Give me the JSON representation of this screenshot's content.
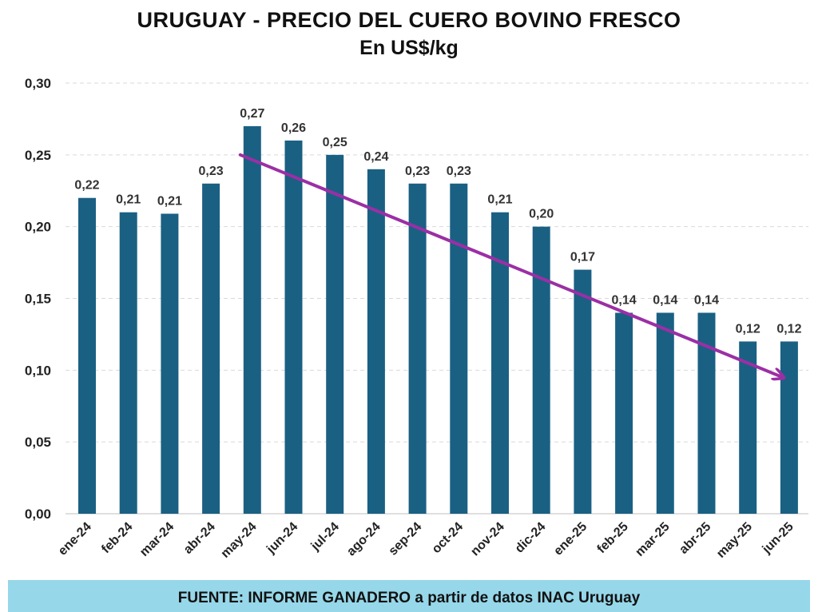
{
  "header": {
    "title": "URUGUAY - PRECIO DEL CUERO BOVINO FRESCO",
    "subtitle": "En US$/kg"
  },
  "footer": {
    "source": "FUENTE: INFORME GANADERO a partir de datos INAC Uruguay"
  },
  "colors": {
    "bar": "#1a6083",
    "trend_arrow": "#9b2fa5",
    "grid": "#d9d9d9",
    "footer_bg": "#96d7e9",
    "text": "#333333"
  },
  "chart_data": {
    "type": "bar",
    "title": "URUGUAY - PRECIO DEL CUERO BOVINO FRESCO",
    "subtitle": "En US$/kg",
    "categories": [
      "ene-24",
      "feb-24",
      "mar-24",
      "abr-24",
      "may-24",
      "jun-24",
      "jul-24",
      "ago-24",
      "sep-24",
      "oct-24",
      "nov-24",
      "dic-24",
      "ene-25",
      "feb-25",
      "mar-25",
      "abr-25",
      "may-25",
      "jun-25"
    ],
    "values": [
      0.22,
      0.21,
      0.209,
      0.23,
      0.27,
      0.26,
      0.25,
      0.24,
      0.23,
      0.23,
      0.21,
      0.2,
      0.17,
      0.14,
      0.14,
      0.14,
      0.12,
      0.12
    ],
    "data_labels": [
      "0,22",
      "0,21",
      "0,21",
      "0,23",
      "0,27",
      "0,26",
      "0,25",
      "0,24",
      "0,23",
      "0,23",
      "0,21",
      "0,20",
      "0,17",
      "0,14",
      "0,14",
      "0,14",
      "0,12",
      "0,12"
    ],
    "ylim": [
      0,
      0.3
    ],
    "yticks": [
      0,
      0.05,
      0.1,
      0.15,
      0.2,
      0.25,
      0.3
    ],
    "ytick_labels": [
      "0,00",
      "0,05",
      "0,10",
      "0,15",
      "0,20",
      "0,25",
      "0,30"
    ],
    "grid": true,
    "legend": "none",
    "annotations": [
      {
        "type": "trend-arrow",
        "from": {
          "x": "may-24",
          "y": 0.25
        },
        "to": {
          "x": "jun-25",
          "y": 0.095
        }
      }
    ]
  }
}
